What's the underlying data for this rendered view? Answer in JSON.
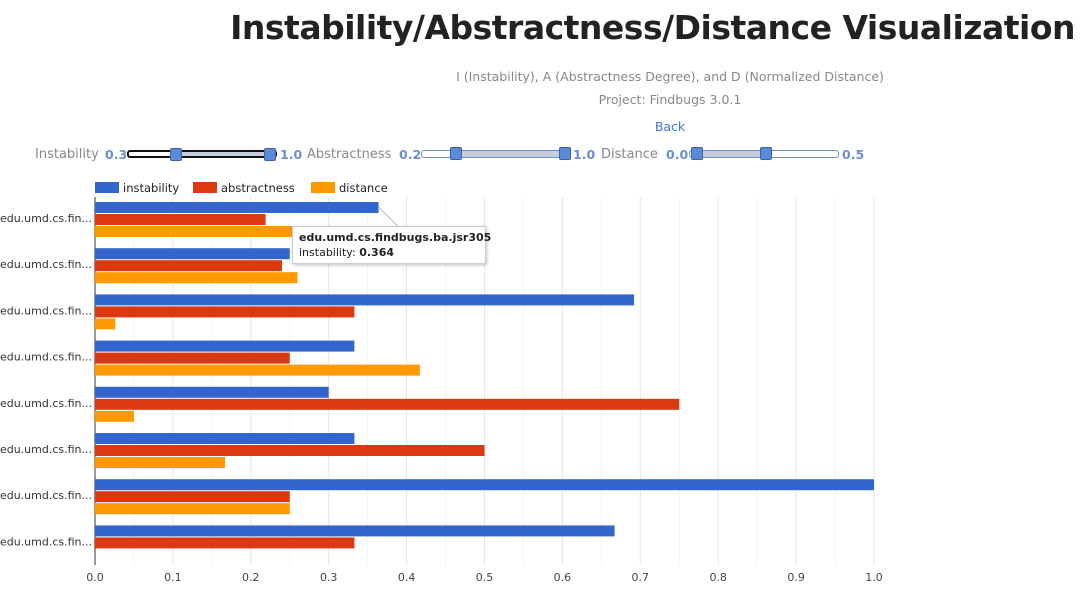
{
  "header": {
    "title": "Instability/Abstractness/Distance Visualization",
    "subtitle": "I (Instability), A (Abstractness Degree), and D (Normalized Distance)",
    "project": "Project: Findbugs 3.0.1",
    "back_label": "Back"
  },
  "filters": {
    "instability": {
      "label": "Instability",
      "min_label": "0.3",
      "max_label": "1.0",
      "low": 0.3,
      "high": 1.0
    },
    "abstractness": {
      "label": "Abstractness",
      "min_label": "0.2",
      "max_label": "1.0",
      "low": 0.2,
      "high": 1.0
    },
    "distance": {
      "label": "Distance",
      "min_label": "0.0",
      "max_label": "0.5",
      "low": 0.0,
      "high": 0.5
    }
  },
  "tooltip": {
    "title": "edu.umd.cs.findbugs.ba.jsr305",
    "series_label": "instability: ",
    "value": "0.364"
  },
  "colors": {
    "instability": "#3366cc",
    "abstractness": "#dc3912",
    "distance": "#ff9900"
  },
  "chart_data": {
    "type": "bar",
    "orientation": "horizontal",
    "title": "",
    "xlabel": "",
    "ylabel": "",
    "xlim": [
      0,
      1.0
    ],
    "x_ticks": [
      "0.0",
      "0.1",
      "0.2",
      "0.3",
      "0.4",
      "0.5",
      "0.6",
      "0.7",
      "0.8",
      "0.9",
      "1.0"
    ],
    "grid": true,
    "legend_position": "top-left",
    "categories": [
      "edu.umd.cs.fin...",
      "edu.umd.cs.fin...",
      "edu.umd.cs.fin...",
      "edu.umd.cs.fin...",
      "edu.umd.cs.fin...",
      "edu.umd.cs.fin...",
      "edu.umd.cs.fin...",
      "edu.umd.cs.fin..."
    ],
    "series": [
      {
        "name": "instability",
        "values": [
          0.364,
          0.25,
          0.692,
          0.333,
          0.3,
          0.333,
          1.0,
          0.667
        ]
      },
      {
        "name": "abstractness",
        "values": [
          0.219,
          0.24,
          0.333,
          0.25,
          0.75,
          0.5,
          0.25,
          0.333
        ]
      },
      {
        "name": "distance",
        "values": [
          0.255,
          0.26,
          0.026,
          0.417,
          0.05,
          0.167,
          0.25,
          0.0
        ]
      }
    ]
  }
}
